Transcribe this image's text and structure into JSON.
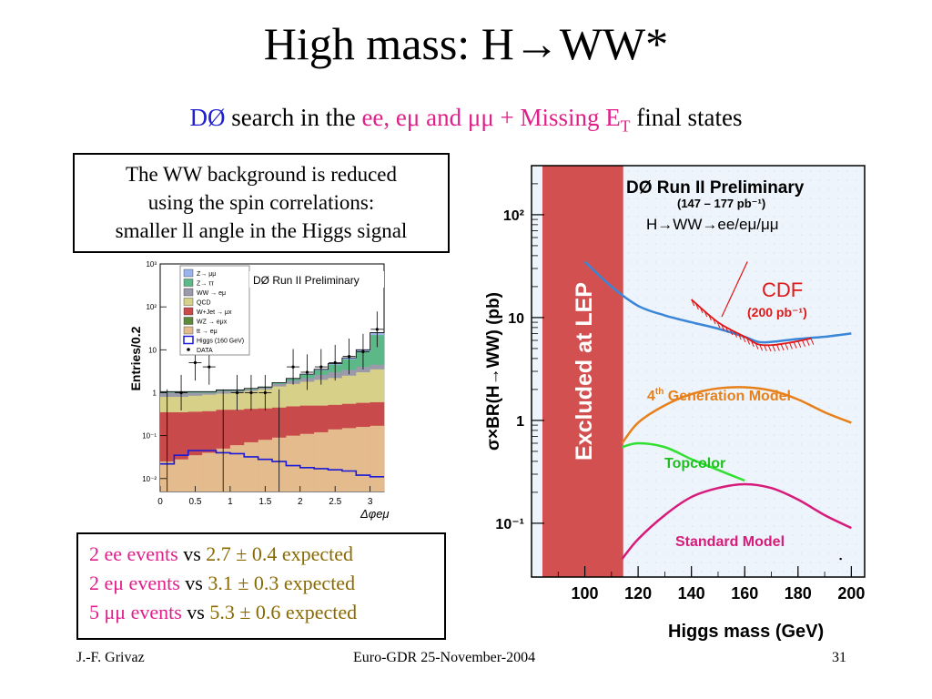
{
  "slide": {
    "title_main": "High mass: H",
    "title_arrow": "→",
    "title_end": "WW*",
    "sub_d0": "DØ",
    "sub_mid": " search in the ",
    "sub_states": "ee, eμ and μμ + Missing E",
    "sub_T": "T",
    "sub_end": " final states",
    "note_lines": [
      "The WW background is reduced",
      "using the spin correlations:",
      "smaller ll angle in the Higgs signal"
    ],
    "events": [
      {
        "label": "2 ee events",
        "vs": " vs ",
        "expected": "2.7 ± 0.4 expected"
      },
      {
        "label": "2 eμ events",
        "vs": " vs ",
        "expected": "3.1 ± 0.3 expected"
      },
      {
        "label": "5 μμ events",
        "vs": " vs ",
        "expected": "5.3 ± 0.6 expected"
      }
    ],
    "footer_left": "J.-F. Grivaz",
    "footer_center": "Euro-GDR 25-November-2004",
    "footer_right": "31",
    "colors": {
      "blue": "#1f1fd0",
      "magenta": "#e0208a",
      "gold": "#8a6a00"
    }
  },
  "chart_data": [
    {
      "type": "bar",
      "title": "DØ Run II Preliminary",
      "xlabel": "Δφeμ",
      "ylabel": "Entries/0.2",
      "xlim": [
        0,
        3.2
      ],
      "ylim": [
        0.005,
        1000
      ],
      "yscale": "log",
      "x_ticks": [
        "0",
        "0.5",
        "1",
        "1.5",
        "2",
        "2.5",
        "3"
      ],
      "y_ticks": [
        "10⁻²",
        "10⁻¹",
        "1",
        "10",
        "10²",
        "10³"
      ],
      "legend": [
        {
          "label": "Z→ μμ",
          "color": "#9ab4ee"
        },
        {
          "label": "Z→ ττ",
          "color": "#5cb887"
        },
        {
          "label": "WW → eμ",
          "color": "#9a9aaa"
        },
        {
          "label": "QCD",
          "color": "#d6d088"
        },
        {
          "label": "W+Jet → μx",
          "color": "#c84a4a"
        },
        {
          "label": "WZ → eμx",
          "color": "#5a8a3a"
        },
        {
          "label": "tt → eμ",
          "color": "#e3bb8c"
        },
        {
          "label": "Higgs (160 GeV)",
          "color": "#1a1ad8"
        },
        {
          "label": "DATA",
          "color": "#000000"
        }
      ],
      "bin_edges": [
        0,
        0.2,
        0.4,
        0.6,
        0.8,
        1.0,
        1.2,
        1.4,
        1.6,
        1.8,
        2.0,
        2.2,
        2.4,
        2.6,
        2.8,
        3.0,
        3.2
      ],
      "stack": {
        "tt": [
          0.025,
          0.028,
          0.035,
          0.04,
          0.05,
          0.06,
          0.07,
          0.08,
          0.09,
          0.1,
          0.11,
          0.12,
          0.14,
          0.15,
          0.16,
          0.17
        ],
        "wjet": [
          0.35,
          0.35,
          0.36,
          0.37,
          0.4,
          0.4,
          0.42,
          0.43,
          0.45,
          0.48,
          0.5,
          0.5,
          0.52,
          0.55,
          0.58,
          0.6
        ],
        "qcd": [
          0.8,
          0.8,
          0.85,
          0.9,
          0.95,
          1.0,
          1.1,
          1.2,
          1.4,
          1.6,
          1.8,
          2.0,
          2.2,
          2.5,
          3.0,
          3.5
        ],
        "ww": [
          1.0,
          1.0,
          1.0,
          1.0,
          1.1,
          1.1,
          1.2,
          1.3,
          1.6,
          1.9,
          2.2,
          2.6,
          3.0,
          3.4,
          4.0,
          4.5
        ],
        "ztautau": [
          1.05,
          1.05,
          1.05,
          1.05,
          1.15,
          1.15,
          1.25,
          1.35,
          1.7,
          2.1,
          2.6,
          3.3,
          4.5,
          6.0,
          9.0,
          22.0
        ],
        "zmumu": [
          1.06,
          1.06,
          1.06,
          1.06,
          1.16,
          1.16,
          1.26,
          1.36,
          1.72,
          2.15,
          2.7,
          3.5,
          4.8,
          6.5,
          10.0,
          25.0
        ]
      },
      "higgs": [
        0.022,
        0.035,
        0.045,
        0.045,
        0.04,
        0.038,
        0.032,
        0.028,
        0.025,
        0.02,
        0.018,
        0.017,
        0.016,
        0.015,
        0.012,
        0.011
      ],
      "data": [
        {
          "x": 0.1,
          "y": 0.005
        },
        {
          "x": 0.3,
          "y": 1.0
        },
        {
          "x": 0.5,
          "y": 5
        },
        {
          "x": 0.7,
          "y": 4
        },
        {
          "x": 0.9,
          "y": 0.005
        },
        {
          "x": 1.1,
          "y": 1.0
        },
        {
          "x": 1.3,
          "y": 1.0
        },
        {
          "x": 1.5,
          "y": 1.0
        },
        {
          "x": 1.7,
          "y": 0.005
        },
        {
          "x": 1.9,
          "y": 4
        },
        {
          "x": 2.1,
          "y": 3
        },
        {
          "x": 2.3,
          "y": 4
        },
        {
          "x": 2.5,
          "y": 5
        },
        {
          "x": 2.7,
          "y": 7
        },
        {
          "x": 2.9,
          "y": 9
        },
        {
          "x": 3.1,
          "y": 30
        }
      ]
    },
    {
      "type": "line",
      "title": "DØ Run II Preliminary",
      "luminosity": "(147 – 177 pb⁻¹)",
      "channel": "H→WW→ee/eμ/μμ",
      "xlabel": "Higgs mass (GeV)",
      "ylabel": "σ×BR(H→WW) (pb)",
      "xlim": [
        80,
        205
      ],
      "ylim": [
        0.03,
        300
      ],
      "yscale": "log",
      "x_ticks": [
        "100",
        "120",
        "140",
        "160",
        "180",
        "200"
      ],
      "y_ticks": [
        "10⁻¹",
        "1",
        "10",
        "10²"
      ],
      "excluded_region": {
        "x_max": 114.4,
        "label": "Excluded at LEP",
        "color": "#d2504f"
      },
      "series": [
        {
          "name": "DØ limit",
          "color": "#3a86d8",
          "x": [
            100,
            110,
            120,
            130,
            140,
            150,
            160,
            165,
            170,
            180,
            190,
            200
          ],
          "y": [
            35,
            20,
            13,
            10.5,
            9,
            7.8,
            6.5,
            5.8,
            5.8,
            6.2,
            6.5,
            7.0
          ]
        },
        {
          "name": "4th Generation Model",
          "label": "4th Generation Model",
          "color": "#e8801a",
          "x": [
            114,
            120,
            130,
            140,
            150,
            160,
            170,
            180,
            190,
            200
          ],
          "y": [
            0.6,
            0.95,
            1.4,
            1.8,
            2.05,
            2.1,
            1.95,
            1.6,
            1.2,
            0.95
          ]
        },
        {
          "name": "Topcolor",
          "label": "Topcolor",
          "color": "#30e030",
          "x": [
            114,
            120,
            130,
            140,
            150,
            160
          ],
          "y": [
            0.55,
            0.6,
            0.55,
            0.42,
            0.33,
            0.26
          ]
        },
        {
          "name": "Standard Model",
          "label": "Standard Model",
          "color": "#d81a7a",
          "x": [
            114,
            120,
            130,
            140,
            150,
            160,
            170,
            180,
            190,
            200
          ],
          "y": [
            0.045,
            0.07,
            0.12,
            0.18,
            0.22,
            0.24,
            0.22,
            0.17,
            0.12,
            0.09
          ]
        },
        {
          "name": "CDF",
          "label": "CDF",
          "sublabel": "(200 pb⁻¹)",
          "color": "#e01818",
          "x": [
            140,
            150,
            160,
            165,
            170,
            175,
            180,
            185
          ],
          "y": [
            15,
            9,
            6.5,
            5.5,
            5.4,
            5.6,
            5.9,
            6.3
          ]
        }
      ]
    }
  ]
}
